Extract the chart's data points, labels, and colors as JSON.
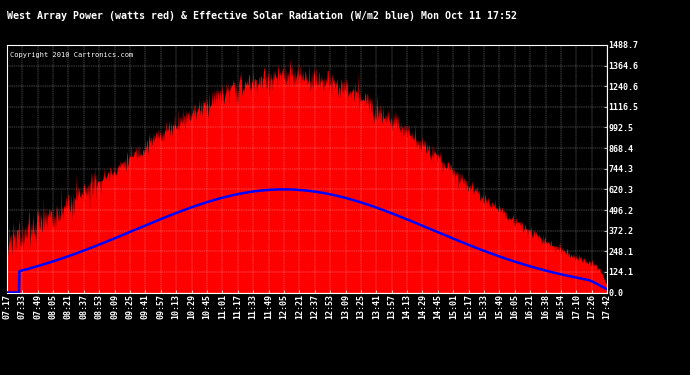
{
  "title": "West Array Power (watts red) & Effective Solar Radiation (W/m2 blue) Mon Oct 11 17:52",
  "copyright": "Copyright 2010 Cartronics.com",
  "background_color": "#000000",
  "plot_bg_color": "#000000",
  "grid_color": "#ffffff",
  "title_color": "#ffffff",
  "ytick_labels": [
    "0.0",
    "124.1",
    "248.1",
    "372.2",
    "496.2",
    "620.3",
    "744.3",
    "868.4",
    "992.5",
    "1116.5",
    "1240.6",
    "1364.6",
    "1488.7"
  ],
  "ytick_values": [
    0.0,
    124.1,
    248.1,
    372.2,
    496.2,
    620.3,
    744.3,
    868.4,
    992.5,
    1116.5,
    1240.6,
    1364.6,
    1488.7
  ],
  "ymax": 1488.7,
  "ymin": 0.0,
  "red_color": "#ff0000",
  "blue_color": "#0000ff",
  "xtick_labels": [
    "07:17",
    "07:33",
    "07:49",
    "08:05",
    "08:21",
    "08:37",
    "08:53",
    "09:09",
    "09:25",
    "09:41",
    "09:57",
    "10:13",
    "10:29",
    "10:45",
    "11:01",
    "11:17",
    "11:33",
    "11:49",
    "12:05",
    "12:21",
    "12:37",
    "12:53",
    "13:09",
    "13:25",
    "13:41",
    "13:57",
    "14:13",
    "14:29",
    "14:45",
    "15:01",
    "15:17",
    "15:33",
    "15:49",
    "16:05",
    "16:21",
    "16:38",
    "16:54",
    "17:10",
    "17:26",
    "17:42"
  ]
}
